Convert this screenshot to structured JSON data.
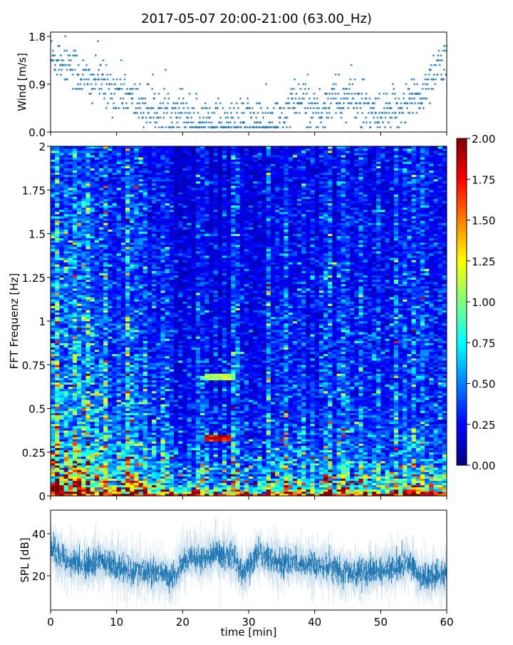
{
  "title": "2017-05-07 20:00-21:00 (63.00_Hz)",
  "colors": {
    "wind": "#1f77b4",
    "spl": "#1f77b4",
    "axis": "#000000"
  },
  "chart_data": [
    {
      "type": "scatter",
      "name": "wind",
      "ylabel": "Wind [m/s]",
      "xlim": [
        0,
        60
      ],
      "ylim": [
        0,
        1.88
      ],
      "yticks": [
        0.0,
        0.9,
        1.8
      ],
      "ytick_labels": [
        "0.0",
        "0.9",
        "1.8"
      ],
      "marker": "+",
      "x_minutes": [
        0,
        1,
        2,
        3,
        4,
        5,
        6,
        7,
        8,
        9,
        10,
        11,
        12,
        13,
        14,
        15,
        16,
        17,
        18,
        19,
        20,
        21,
        22,
        23,
        24,
        25,
        26,
        27,
        28,
        29,
        30,
        31,
        32,
        33,
        34,
        35,
        36,
        37,
        38,
        39,
        40,
        41,
        42,
        43,
        44,
        45,
        46,
        47,
        48,
        49,
        50,
        51,
        52,
        53,
        54,
        55,
        56,
        57,
        58,
        59,
        60
      ],
      "wind_mean": [
        1.4,
        1.4,
        1.35,
        1.3,
        1.1,
        1.0,
        0.9,
        1.1,
        0.8,
        0.8,
        0.8,
        0.8,
        0.6,
        0.55,
        0.5,
        0.45,
        0.4,
        0.35,
        0.4,
        0.4,
        0.45,
        0.3,
        0.25,
        0.2,
        0.3,
        0.2,
        0.15,
        0.15,
        0.15,
        0.2,
        0.25,
        0.2,
        0.15,
        0.15,
        0.15,
        0.2,
        0.45,
        0.55,
        0.6,
        0.5,
        0.4,
        0.35,
        0.6,
        0.65,
        0.55,
        0.65,
        0.6,
        0.5,
        0.3,
        0.3,
        0.25,
        0.3,
        0.35,
        0.5,
        0.6,
        0.6,
        0.7,
        0.9,
        1.2,
        1.3,
        1.2
      ]
    },
    {
      "type": "heatmap",
      "name": "spectrogram",
      "ylabel": "FFT Frequenz [Hz]",
      "xlim": [
        0,
        60
      ],
      "ylim": [
        0,
        2
      ],
      "yticks": [
        0,
        0.25,
        0.5,
        0.75,
        1,
        1.25,
        1.5,
        1.75,
        2
      ],
      "ytick_labels": [
        "0",
        "0.25",
        "0.5",
        "0.75",
        "1",
        "1.25",
        "1.5",
        "1.75",
        "2"
      ],
      "colormap": "jet",
      "clim": [
        0,
        2
      ],
      "colorbar_ticks": [
        "0.00",
        "0.25",
        "0.50",
        "0.75",
        "1.00",
        "1.25",
        "1.50",
        "1.75",
        "2.00"
      ],
      "freq_profile_hz": [
        0,
        0.05,
        0.1,
        0.25,
        0.5,
        0.75,
        1.0,
        1.25,
        1.5,
        1.75,
        2.0
      ],
      "freq_profile_level": [
        1.8,
        1.0,
        0.75,
        0.5,
        0.38,
        0.34,
        0.32,
        0.3,
        0.28,
        0.27,
        0.27
      ],
      "time_factor_minutes": [
        0,
        5,
        10,
        15,
        20,
        25,
        30,
        35,
        40,
        45,
        50,
        55,
        60
      ],
      "time_factor": [
        1.35,
        1.3,
        1.25,
        1.0,
        0.85,
        0.7,
        0.75,
        0.85,
        0.9,
        0.95,
        0.95,
        1.0,
        1.05
      ],
      "features": [
        {
          "t_start": 23.2,
          "t_end": 28.0,
          "f": 0.68,
          "value": 1.1
        },
        {
          "t_start": 23.2,
          "t_end": 27.5,
          "f": 0.33,
          "value": 1.8
        }
      ]
    },
    {
      "type": "line",
      "name": "spl",
      "ylabel": "SPL [dB]",
      "xlabel": "time [min]",
      "xlim": [
        0,
        60
      ],
      "ylim": [
        3.7,
        51.2
      ],
      "xticks": [
        0,
        10,
        20,
        30,
        40,
        50,
        60
      ],
      "xtick_labels": [
        "0",
        "10",
        "20",
        "30",
        "40",
        "50",
        "60"
      ],
      "yticks": [
        20,
        40
      ],
      "ytick_labels": [
        "20",
        "40"
      ],
      "x_minutes": [
        0,
        1,
        2,
        3,
        4,
        5,
        6,
        7,
        8,
        9,
        10,
        11,
        12,
        13,
        14,
        15,
        16,
        17,
        18,
        19,
        20,
        21,
        22,
        23,
        24,
        25,
        26,
        27,
        28,
        29,
        30,
        31,
        32,
        33,
        34,
        35,
        36,
        37,
        38,
        39,
        40,
        41,
        42,
        43,
        44,
        45,
        46,
        47,
        48,
        49,
        50,
        51,
        52,
        53,
        54,
        55,
        56,
        57,
        58,
        59,
        60
      ],
      "spl_mean": [
        35,
        30,
        28,
        26,
        27,
        25,
        26,
        27,
        26,
        25,
        24,
        23,
        22,
        23,
        22,
        21,
        22,
        21,
        19,
        21,
        27,
        29,
        28,
        28,
        29,
        31,
        29,
        30,
        28,
        21,
        23,
        30,
        29,
        28,
        27,
        26,
        26,
        27,
        25,
        25,
        26,
        24,
        23,
        24,
        22,
        22,
        21,
        22,
        21,
        22,
        22,
        23,
        24,
        25,
        27,
        24,
        20,
        19,
        20,
        20,
        21
      ]
    }
  ]
}
